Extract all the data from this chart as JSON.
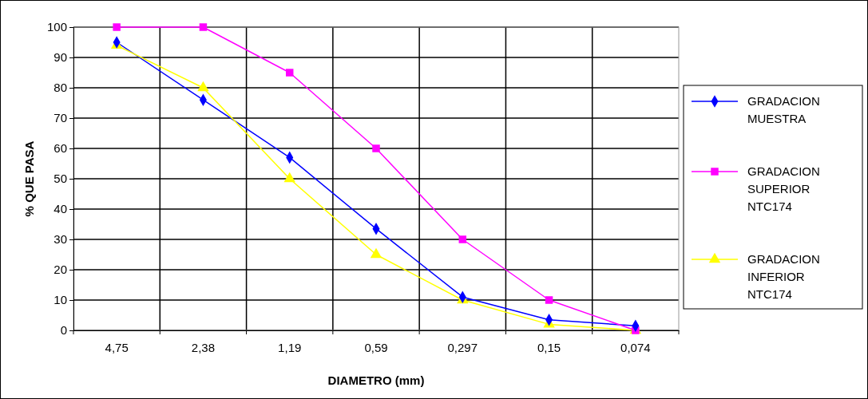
{
  "chart_data": {
    "type": "line",
    "xlabel": "DIAMETRO (mm)",
    "ylabel": "% QUE PASA",
    "categories": [
      "4,75",
      "2,38",
      "1,19",
      "0,59",
      "0,297",
      "0,15",
      "0,074"
    ],
    "ylim": [
      0,
      100
    ],
    "yticks": [
      0,
      10,
      20,
      30,
      40,
      50,
      60,
      70,
      80,
      90,
      100
    ],
    "grid": true,
    "legend": "right",
    "series": [
      {
        "name": "GRADACION MUESTRA",
        "color": "#0000ff",
        "marker": "diamond",
        "values": [
          95,
          76,
          57,
          33.5,
          11,
          3.5,
          1.5
        ]
      },
      {
        "name": "GRADACION SUPERIOR NTC174",
        "color": "#ff00ff",
        "marker": "square",
        "values": [
          100,
          100,
          85,
          60,
          30,
          10,
          0
        ]
      },
      {
        "name": "GRADACION INFERIOR NTC174",
        "color": "#ffff00",
        "marker": "triangle",
        "values": [
          94,
          80,
          50,
          25,
          10,
          2,
          0
        ]
      }
    ]
  }
}
